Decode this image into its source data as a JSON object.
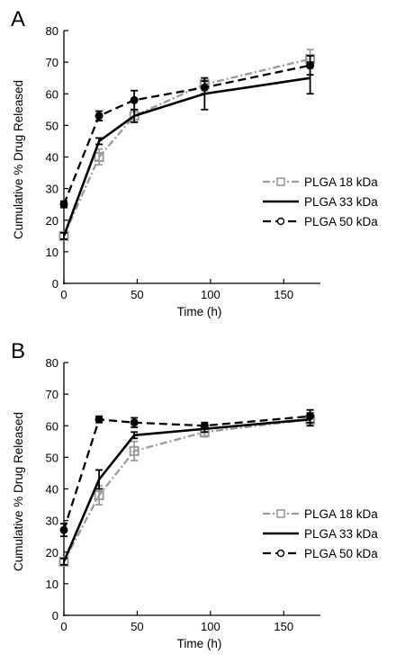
{
  "chart_data": [
    {
      "type": "line",
      "panel": "A",
      "xlabel": "Time (h)",
      "ylabel": "Cumulative % Drug Released",
      "xlim": [
        0,
        175
      ],
      "ylim": [
        0,
        80
      ],
      "xticks": [
        0,
        50,
        100,
        150
      ],
      "yticks": [
        0,
        10,
        20,
        30,
        40,
        50,
        60,
        70,
        80
      ],
      "legend_position": "right",
      "grid": false,
      "series": [
        {
          "name": "PLGA 18 kDa",
          "color": "#9a9a9a",
          "style": "dash-dot",
          "marker": "open-square",
          "x": [
            0,
            24,
            48,
            96,
            168
          ],
          "y": [
            15,
            40,
            53,
            63,
            71
          ],
          "err": [
            1,
            2.5,
            2,
            2,
            3
          ]
        },
        {
          "name": "PLGA 33 kDa",
          "color": "#000000",
          "style": "solid",
          "marker": "none",
          "x": [
            0,
            24,
            48,
            96,
            168
          ],
          "y": [
            15,
            45,
            53,
            60,
            65
          ],
          "err": [
            1,
            1,
            2,
            5,
            5
          ]
        },
        {
          "name": "PLGA 50 kDa",
          "color": "#000000",
          "style": "dashed",
          "marker": "filled-circle",
          "x": [
            0,
            24,
            48,
            96,
            168
          ],
          "y": [
            25,
            53,
            58,
            62,
            69
          ],
          "err": [
            1,
            1.5,
            3,
            2,
            3
          ]
        }
      ]
    },
    {
      "type": "line",
      "panel": "B",
      "xlabel": "Time (h)",
      "ylabel": "Cumulative % Drug Released",
      "xlim": [
        0,
        175
      ],
      "ylim": [
        0,
        80
      ],
      "xticks": [
        0,
        50,
        100,
        150
      ],
      "yticks": [
        0,
        10,
        20,
        30,
        40,
        50,
        60,
        70,
        80
      ],
      "legend_position": "right",
      "grid": false,
      "series": [
        {
          "name": "PLGA 18 kDa",
          "color": "#9a9a9a",
          "style": "dash-dot",
          "marker": "open-square",
          "x": [
            0,
            24,
            48,
            96,
            168
          ],
          "y": [
            17,
            38,
            52,
            58,
            62
          ],
          "err": [
            1,
            3,
            3,
            1.5,
            2
          ]
        },
        {
          "name": "PLGA 33 kDa",
          "color": "#000000",
          "style": "solid",
          "marker": "none",
          "x": [
            0,
            24,
            48,
            96,
            168
          ],
          "y": [
            17,
            43,
            57,
            59,
            62
          ],
          "err": [
            1,
            3,
            1,
            1,
            2
          ]
        },
        {
          "name": "PLGA 50 kDa",
          "color": "#000000",
          "style": "dashed",
          "marker": "filled-circle",
          "x": [
            0,
            24,
            48,
            96,
            168
          ],
          "y": [
            27,
            62,
            61,
            60,
            63
          ],
          "err": [
            2,
            1,
            1.5,
            1,
            2
          ]
        }
      ]
    }
  ]
}
